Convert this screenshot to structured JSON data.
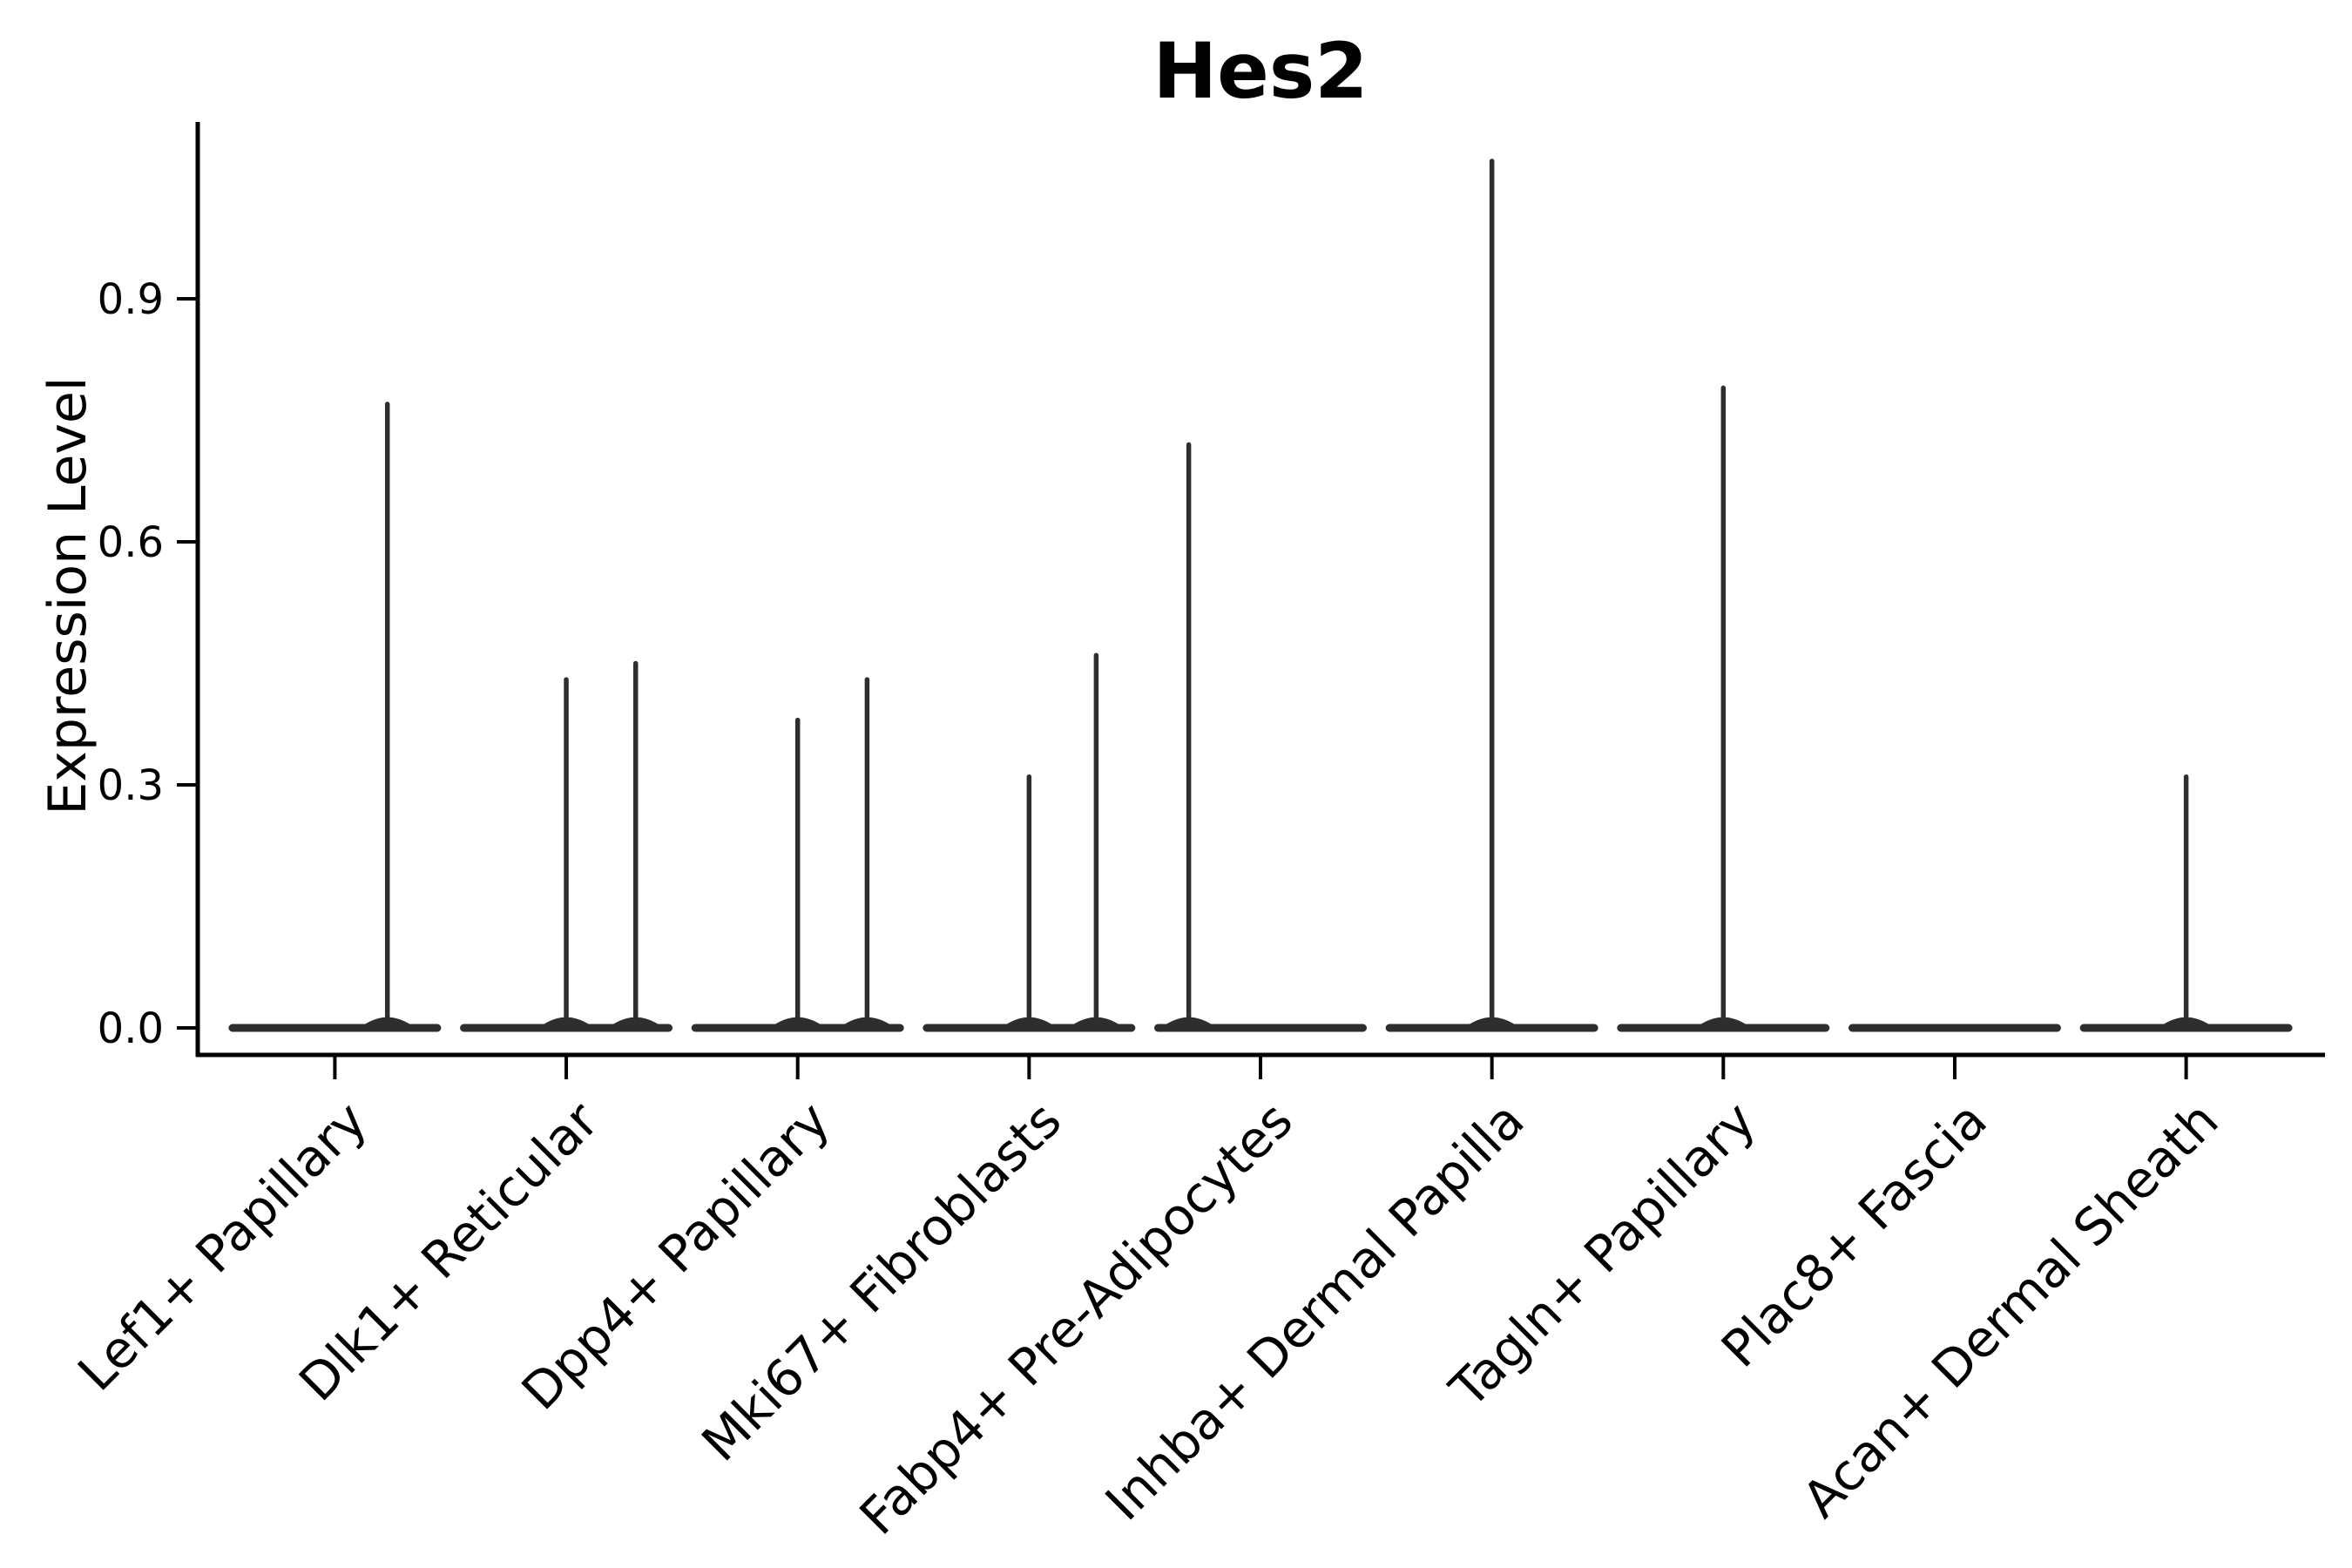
{
  "title": "Hes2",
  "axes": {
    "ylabel": "Expression Level",
    "xlabel": "",
    "ytick_labels": [
      "0.0",
      "0.3",
      "0.6",
      "0.9"
    ]
  },
  "colors": {
    "violin": "#2e2e2e",
    "axis": "#000000",
    "background": "#ffffff"
  },
  "chart_data": {
    "type": "violin",
    "title": "Hes2",
    "xlabel": "",
    "ylabel": "Expression Level",
    "ylim": [
      0.0,
      1.12
    ],
    "yticks": [
      0.0,
      0.3,
      0.6,
      0.9
    ],
    "grid": false,
    "legend": "none",
    "categories": [
      "Lef1+ Papillary",
      "Dlk1+ Reticular",
      "Dpp4+ Papillary",
      "Mki67+ Fibroblasts",
      "Fabp4+ Pre-Adipocytes",
      "Inhba+ Dermal Papilla",
      "Tagln+ Papillary",
      "Plac8+ Fascia",
      "Acan+ Dermal Sheath"
    ],
    "description": "Violin plot of Hes2 expression; every cluster is dominated by zeros (flat violin body at 0.0) with thin density spikes reaching the few non-zero expression values.",
    "violins": [
      {
        "category": "Lef1+ Papillary",
        "base_value": 0.0,
        "spikes": [
          {
            "dx": 0.227,
            "max": 0.77
          }
        ]
      },
      {
        "category": "Dlk1+ Reticular",
        "base_value": 0.0,
        "spikes": [
          {
            "dx": 0.0,
            "max": 0.43
          },
          {
            "dx": 0.3,
            "max": 0.45
          }
        ]
      },
      {
        "category": "Dpp4+ Papillary",
        "base_value": 0.0,
        "spikes": [
          {
            "dx": 0.0,
            "max": 0.38
          },
          {
            "dx": 0.3,
            "max": 0.43
          }
        ]
      },
      {
        "category": "Mki67+ Fibroblasts",
        "base_value": 0.0,
        "spikes": [
          {
            "dx": 0.0,
            "max": 0.31
          },
          {
            "dx": 0.29,
            "max": 0.46
          }
        ]
      },
      {
        "category": "Fabp4+ Pre-Adipocytes",
        "base_value": 0.0,
        "spikes": [
          {
            "dx": -0.31,
            "max": 0.72
          }
        ]
      },
      {
        "category": "Inhba+ Dermal Papilla",
        "base_value": 0.0,
        "spikes": [
          {
            "dx": 0.0,
            "max": 1.07
          }
        ]
      },
      {
        "category": "Tagln+ Papillary",
        "base_value": 0.0,
        "spikes": [
          {
            "dx": 0.0,
            "max": 0.79
          }
        ]
      },
      {
        "category": "Plac8+ Fascia",
        "base_value": 0.0,
        "spikes": []
      },
      {
        "category": "Acan+ Dermal Sheath",
        "base_value": 0.0,
        "spikes": [
          {
            "dx": 0.0,
            "max": 0.31
          }
        ]
      }
    ]
  }
}
